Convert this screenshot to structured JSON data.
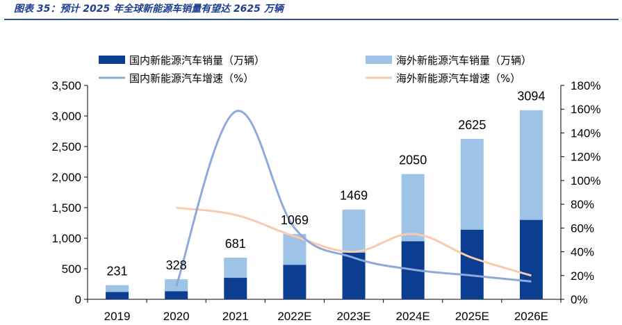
{
  "header": {
    "caption": "图表 35：预计 2025 年全球新能源车销量有望达 2625 万辆"
  },
  "chart_data": {
    "type": "bar",
    "title": "",
    "categories": [
      "2019",
      "2020",
      "2021",
      "2022E",
      "2023E",
      "2024E",
      "2025E",
      "2026E"
    ],
    "series": [
      {
        "name": "国内新能源汽车销量（万辆）",
        "kind": "bar",
        "axis": "left",
        "color": "#0b3d91",
        "values": [
          120,
          133,
          352,
          565,
          765,
          950,
          1140,
          1300
        ]
      },
      {
        "name": "海外新能源汽车销量（万辆）",
        "kind": "bar",
        "axis": "left",
        "color": "#9dc3e6",
        "values": [
          111,
          195,
          329,
          504,
          704,
          1100,
          1485,
          1794
        ]
      },
      {
        "name": "国内新能源汽车增速（%）",
        "kind": "line",
        "axis": "right",
        "color": "#8eaadb",
        "values": [
          null,
          11,
          158,
          60,
          35,
          25,
          20,
          15
        ]
      },
      {
        "name": "海外新能源汽车增速（%）",
        "kind": "line",
        "axis": "right",
        "color": "#f8cbad",
        "values": [
          null,
          77,
          71,
          53,
          40,
          55,
          35,
          20
        ]
      }
    ],
    "totals": [
      "231",
      "328",
      "681",
      "1069",
      "1469",
      "2050",
      "2625",
      "3094"
    ],
    "left_axis": {
      "ylim": [
        0,
        3500
      ],
      "ticks": [
        "0",
        "500",
        "1,000",
        "1,500",
        "2,000",
        "2,500",
        "3,000",
        "3,500"
      ]
    },
    "right_axis": {
      "ylim": [
        0,
        180
      ],
      "ticks": [
        "0%",
        "20%",
        "40%",
        "60%",
        "80%",
        "100%",
        "120%",
        "140%",
        "160%",
        "180%"
      ]
    },
    "legend_placement": "top",
    "grid": false
  }
}
